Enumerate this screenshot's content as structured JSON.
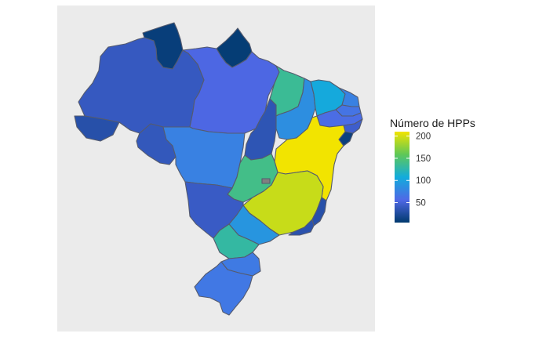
{
  "chart_data": {
    "type": "choropleth",
    "legend": {
      "title": "Número de HPPs",
      "ticks": [
        50,
        100,
        150,
        200
      ],
      "range": [
        5,
        210
      ],
      "colors": [
        "#003a6e",
        "#4f68e6",
        "#12acdc",
        "#5fc857",
        "#f2e400"
      ],
      "placement": "right"
    },
    "regions": [
      {
        "id": "RR",
        "value": 10
      },
      {
        "id": "AP",
        "value": 8
      },
      {
        "id": "AM",
        "value": 40
      },
      {
        "id": "PA",
        "value": 55
      },
      {
        "id": "AC",
        "value": 30
      },
      {
        "id": "RO",
        "value": 38
      },
      {
        "id": "MT",
        "value": 75
      },
      {
        "id": "TO",
        "value": 35
      },
      {
        "id": "MA",
        "value": 135
      },
      {
        "id": "PI",
        "value": 85
      },
      {
        "id": "CE",
        "value": 105
      },
      {
        "id": "RN",
        "value": 75
      },
      {
        "id": "PB",
        "value": 65
      },
      {
        "id": "PE",
        "value": 60
      },
      {
        "id": "AL",
        "value": 45
      },
      {
        "id": "SE",
        "value": 12
      },
      {
        "id": "BA",
        "value": 210
      },
      {
        "id": "GO",
        "value": 140
      },
      {
        "id": "DF",
        "value": null
      },
      {
        "id": "MG",
        "value": 195
      },
      {
        "id": "ES",
        "value": 30
      },
      {
        "id": "RJ",
        "value": 32
      },
      {
        "id": "MS",
        "value": 42
      },
      {
        "id": "SP",
        "value": 90
      },
      {
        "id": "PR",
        "value": 130
      },
      {
        "id": "SC",
        "value": 70
      },
      {
        "id": "RS",
        "value": 68
      }
    ]
  }
}
